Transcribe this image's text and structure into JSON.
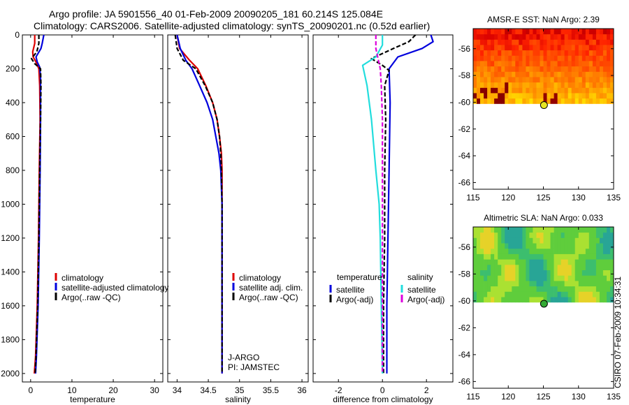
{
  "header": {
    "line1": "Argo profile: JA 5901556_40 01-Feb-2009 20090205_181 60.214S 125.084E",
    "line2": "Climatology: CARS2006. Satellite-adjusted climatology: synTS_20090201.nc (0.52d earlier)"
  },
  "side_label": "CSIRO 07-Feb-2009 10:34:31",
  "colors": {
    "red": "#dd0000",
    "blue": "#0000dd",
    "black": "#000000",
    "cyan": "#22dddd",
    "magenta": "#dd00dd"
  },
  "chart_data": [
    {
      "type": "line",
      "id": "temperature",
      "xlabel": "temperature",
      "xlim": [
        -2,
        32
      ],
      "xticks": [
        0,
        10,
        20,
        30
      ],
      "ylim": [
        2050,
        0
      ],
      "yticks": [
        0,
        200,
        400,
        600,
        800,
        1000,
        1200,
        1400,
        1600,
        1800,
        2000
      ],
      "legend": [
        "climatology",
        "satellite-adjusted climatology",
        "Argo(..raw -QC)"
      ],
      "series": [
        {
          "name": "climatology",
          "color": "red",
          "dash": false,
          "points": [
            [
              1.0,
              0
            ],
            [
              1.0,
              50
            ],
            [
              0.5,
              100
            ],
            [
              0.6,
              130
            ],
            [
              1.3,
              160
            ],
            [
              2.0,
              200
            ],
            [
              2.2,
              300
            ],
            [
              2.3,
              500
            ],
            [
              2.1,
              800
            ],
            [
              1.9,
              1200
            ],
            [
              1.6,
              1600
            ],
            [
              1.2,
              1900
            ],
            [
              0.9,
              2000
            ]
          ]
        },
        {
          "name": "satellite-adjusted climatology",
          "color": "blue",
          "dash": false,
          "points": [
            [
              3.2,
              0
            ],
            [
              2.8,
              50
            ],
            [
              2.5,
              80
            ],
            [
              1.3,
              130
            ],
            [
              1.6,
              160
            ],
            [
              2.2,
              190
            ],
            [
              2.4,
              250
            ],
            [
              2.4,
              500
            ],
            [
              2.3,
              800
            ],
            [
              2.1,
              1200
            ],
            [
              1.8,
              1600
            ],
            [
              1.4,
              1900
            ],
            [
              1.2,
              2000
            ]
          ]
        },
        {
          "name": "Argo(..raw -QC)",
          "color": "black",
          "dash": true,
          "points": [
            [
              2.0,
              0
            ],
            [
              2.0,
              50
            ],
            [
              1.5,
              100
            ],
            [
              0.2,
              140
            ],
            [
              1.0,
              170
            ],
            [
              2.4,
              200
            ],
            [
              2.5,
              300
            ],
            [
              2.4,
              500
            ],
            [
              2.2,
              800
            ],
            [
              2.0,
              1200
            ],
            [
              1.7,
              1600
            ],
            [
              1.3,
              1900
            ],
            [
              1.1,
              2000
            ]
          ]
        }
      ]
    },
    {
      "type": "line",
      "id": "salinity",
      "xlabel": "salinity",
      "xlim": [
        33.85,
        36.1
      ],
      "xticks": [
        34,
        34.5,
        35,
        35.5,
        36
      ],
      "ylim": [
        2050,
        0
      ],
      "yticks": [
        0,
        200,
        400,
        600,
        800,
        1000,
        1200,
        1400,
        1600,
        1800,
        2000
      ],
      "legend": [
        "climatology",
        "satellite adj. clim.",
        "Argo(..raw -QC)"
      ],
      "annotations": [
        "J-ARGO",
        "PI: JAMSTEC"
      ],
      "series": [
        {
          "name": "climatology",
          "color": "red",
          "dash": false,
          "points": [
            [
              34.0,
              0
            ],
            [
              34.04,
              80
            ],
            [
              34.2,
              150
            ],
            [
              34.33,
              200
            ],
            [
              34.46,
              300
            ],
            [
              34.57,
              400
            ],
            [
              34.64,
              500
            ],
            [
              34.68,
              600
            ],
            [
              34.71,
              700
            ],
            [
              34.72,
              800
            ],
            [
              34.72,
              1000
            ],
            [
              34.72,
              2000
            ]
          ]
        },
        {
          "name": "satellite adj. clim.",
          "color": "blue",
          "dash": false,
          "points": [
            [
              34.0,
              0
            ],
            [
              34.05,
              80
            ],
            [
              34.14,
              150
            ],
            [
              34.24,
              200
            ],
            [
              34.36,
              300
            ],
            [
              34.48,
              400
            ],
            [
              34.57,
              500
            ],
            [
              34.62,
              600
            ],
            [
              34.67,
              700
            ],
            [
              34.7,
              800
            ],
            [
              34.72,
              1000
            ],
            [
              34.72,
              2000
            ]
          ]
        },
        {
          "name": "Argo(..raw -QC)",
          "color": "black",
          "dash": true,
          "points": [
            [
              33.97,
              0
            ],
            [
              34.0,
              80
            ],
            [
              34.1,
              150
            ],
            [
              34.3,
              200
            ],
            [
              34.45,
              300
            ],
            [
              34.57,
              400
            ],
            [
              34.64,
              500
            ],
            [
              34.68,
              600
            ],
            [
              34.7,
              700
            ],
            [
              34.71,
              800
            ],
            [
              34.72,
              1000
            ],
            [
              34.72,
              2000
            ]
          ]
        }
      ]
    },
    {
      "type": "line",
      "id": "difference",
      "xlabel": "difference from climatology",
      "xlim": [
        -3.15,
        3.2
      ],
      "xticks": [
        -2,
        0,
        2
      ],
      "ylim": [
        2050,
        0
      ],
      "yticks": [
        0,
        200,
        400,
        600,
        800,
        1000,
        1200,
        1400,
        1600,
        1800,
        2000
      ],
      "legend_left_title": "temperature",
      "legend_right_title": "salinity",
      "legend": [
        "satellite",
        "Argo(-adj)",
        "satellite",
        "Argo(-adj)"
      ],
      "series": [
        {
          "name": "temperature satellite",
          "color": "blue",
          "dash": false,
          "points": [
            [
              2.2,
              0
            ],
            [
              2.3,
              40
            ],
            [
              1.8,
              80
            ],
            [
              0.7,
              130
            ],
            [
              0.3,
              200
            ],
            [
              0.35,
              400
            ],
            [
              0.3,
              800
            ],
            [
              0.25,
              1200
            ],
            [
              0.2,
              1600
            ],
            [
              0.2,
              2000
            ]
          ]
        },
        {
          "name": "temperature Argo(-adj)",
          "color": "black",
          "dash": true,
          "points": [
            [
              1.5,
              0
            ],
            [
              1.2,
              40
            ],
            [
              0.5,
              80
            ],
            [
              -0.5,
              140
            ],
            [
              0.0,
              180
            ],
            [
              0.3,
              210
            ],
            [
              0.1,
              300
            ],
            [
              0.15,
              500
            ],
            [
              0.1,
              800
            ],
            [
              0.1,
              1200
            ],
            [
              0.05,
              1600
            ],
            [
              0.05,
              2000
            ]
          ]
        },
        {
          "name": "salinity satellite",
          "color": "cyan",
          "dash": false,
          "points": [
            [
              0.0,
              0
            ],
            [
              0.0,
              60
            ],
            [
              -0.3,
              130
            ],
            [
              -0.9,
              180
            ],
            [
              -0.7,
              300
            ],
            [
              -0.5,
              500
            ],
            [
              -0.3,
              800
            ],
            [
              -0.15,
              1000
            ],
            [
              -0.1,
              1200
            ],
            [
              -0.05,
              1600
            ],
            [
              0.0,
              2000
            ]
          ]
        },
        {
          "name": "salinity Argo(-adj)",
          "color": "magenta",
          "dash": true,
          "points": [
            [
              -0.3,
              0
            ],
            [
              -0.3,
              80
            ],
            [
              -0.2,
              140
            ],
            [
              -0.1,
              200
            ],
            [
              -0.05,
              300
            ],
            [
              0.0,
              500
            ],
            [
              0.0,
              800
            ],
            [
              0.0,
              1200
            ],
            [
              0.0,
              1600
            ],
            [
              0.0,
              2000
            ]
          ]
        }
      ]
    },
    {
      "type": "heatmap",
      "id": "sst",
      "title": "AMSR-E SST: NaN Argo: 2.39",
      "xlim": [
        115,
        135
      ],
      "xticks": [
        115,
        120,
        125,
        130,
        135
      ],
      "ylim": [
        -66.5,
        -54.5
      ],
      "yticks": [
        -56,
        -58,
        -60,
        -62,
        -64,
        -66
      ],
      "data_lat_range": [
        -60.1,
        -54.5
      ],
      "colormap": "hot",
      "marker": {
        "lon": 125.084,
        "lat": -60.214,
        "color": "#e6e622"
      }
    },
    {
      "type": "heatmap",
      "id": "sla",
      "title": "Altimetric SLA: NaN Argo: 0.033",
      "xlim": [
        115,
        135
      ],
      "xticks": [
        115,
        120,
        125,
        130,
        135
      ],
      "ylim": [
        -66.5,
        -54.5
      ],
      "yticks": [
        -56,
        -58,
        -60,
        -62,
        -64,
        -66
      ],
      "data_lat_range": [
        -60.1,
        -54.5
      ],
      "colormap": "jet-green",
      "marker": {
        "lon": 125.084,
        "lat": -60.214,
        "color": "#33aa33"
      }
    }
  ]
}
